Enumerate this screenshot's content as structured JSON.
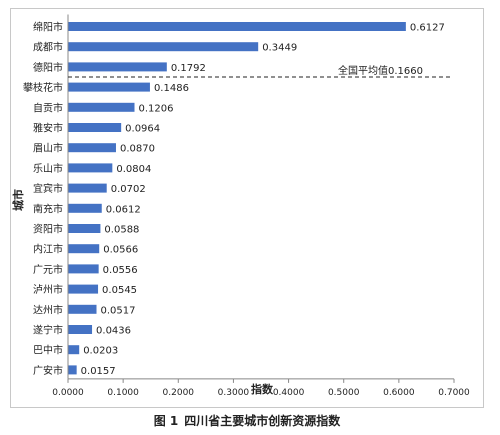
{
  "chart_data": {
    "type": "bar",
    "orientation": "horizontal",
    "categories": [
      "绵阳市",
      "成都市",
      "德阳市",
      "攀枝花市",
      "自贡市",
      "雅安市",
      "眉山市",
      "乐山市",
      "宜宾市",
      "南充市",
      "资阳市",
      "内江市",
      "广元市",
      "泸州市",
      "达州市",
      "遂宁市",
      "巴中市",
      "广安市"
    ],
    "values": [
      0.6127,
      0.3449,
      0.1792,
      0.1486,
      0.1206,
      0.0964,
      0.087,
      0.0804,
      0.0702,
      0.0612,
      0.0588,
      0.0566,
      0.0556,
      0.0545,
      0.0517,
      0.0436,
      0.0203,
      0.0157
    ],
    "value_labels": [
      "0.6127",
      "0.3449",
      "0.1792",
      "0.1486",
      "0.1206",
      "0.0964",
      "0.0870",
      "0.0804",
      "0.0702",
      "0.0612",
      "0.0588",
      "0.0566",
      "0.0556",
      "0.0545",
      "0.0517",
      "0.0436",
      "0.0203",
      "0.0157"
    ],
    "xlabel": "指数",
    "ylabel": "城市",
    "xlim": [
      0,
      0.7
    ],
    "xticks": [
      "0.0000",
      "0.1000",
      "0.2000",
      "0.3000",
      "0.4000",
      "0.5000",
      "0.6000",
      "0.7000"
    ],
    "grid": false,
    "bar_color": "#4472c4",
    "reference_line": {
      "value_label": "全国平均值0.1660",
      "position_between": [
        "德阳市",
        "攀枝花市"
      ],
      "style": "dashed"
    }
  },
  "caption": {
    "number": "图 1",
    "text": "四川省主要城市创新资源指数"
  }
}
